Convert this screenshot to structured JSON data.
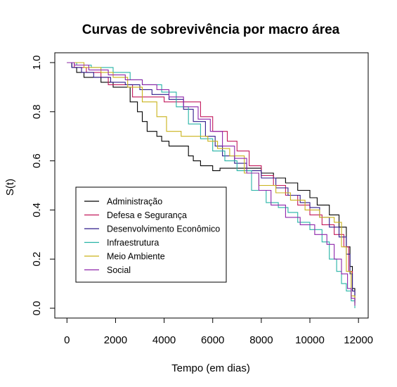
{
  "chart_data": {
    "type": "line",
    "title": "Curvas de sobrevivência por macro área",
    "xlabel": "Tempo (em dias)",
    "ylabel": "S(t)",
    "xlim": [
      -500,
      12400
    ],
    "ylim": [
      -0.04,
      1.04
    ],
    "xticks": [
      0,
      2000,
      4000,
      6000,
      8000,
      10000,
      12000
    ],
    "yticks": [
      0.0,
      0.2,
      0.4,
      0.6,
      0.8,
      1.0
    ],
    "xtick_labels": [
      "0",
      "2000",
      "4000",
      "6000",
      "8000",
      "10000",
      "12000"
    ],
    "ytick_labels": [
      "0.0",
      "0.2",
      "0.4",
      "0.6",
      "0.8",
      "1.0"
    ],
    "step": true,
    "legend_position": "bottom-left",
    "series": [
      {
        "name": "Administração",
        "color": "#000000",
        "x": [
          0,
          200,
          400,
          700,
          1400,
          1900,
          2600,
          2900,
          3100,
          3300,
          3700,
          3900,
          4200,
          5000,
          5200,
          5500,
          6000,
          6300,
          7000,
          7700,
          8000,
          8500,
          9000,
          9500,
          10000,
          10300,
          10800,
          11200,
          11500,
          11650,
          11750,
          11850
        ],
        "y": [
          1.0,
          0.98,
          0.96,
          0.94,
          0.92,
          0.9,
          0.84,
          0.8,
          0.76,
          0.72,
          0.7,
          0.68,
          0.66,
          0.62,
          0.6,
          0.58,
          0.56,
          0.57,
          0.57,
          0.57,
          0.55,
          0.53,
          0.51,
          0.48,
          0.45,
          0.42,
          0.38,
          0.33,
          0.25,
          0.17,
          0.08,
          0.03
        ]
      },
      {
        "name": "Defesa e Segurança",
        "color": "#c2185b",
        "x": [
          0,
          300,
          800,
          1400,
          1700,
          2700,
          3900,
          4000,
          5000,
          5500,
          6000,
          6600,
          7000,
          7500,
          8000,
          8500,
          9000,
          9500,
          10000,
          10500,
          11000,
          11400,
          11600,
          11750,
          11850
        ],
        "y": [
          1.0,
          0.98,
          0.96,
          0.94,
          0.91,
          0.86,
          0.86,
          0.84,
          0.84,
          0.78,
          0.72,
          0.68,
          0.64,
          0.58,
          0.54,
          0.5,
          0.46,
          0.42,
          0.38,
          0.34,
          0.3,
          0.25,
          0.15,
          0.07,
          0.02
        ]
      },
      {
        "name": "Desenvolvimento Econômico",
        "color": "#2e1a8a",
        "x": [
          0,
          200,
          600,
          1100,
          1800,
          2400,
          3000,
          3500,
          4200,
          4800,
          5200,
          5700,
          6100,
          6400,
          6900,
          7400,
          8000,
          8600,
          9100,
          9600,
          10000,
          10400,
          10800,
          11200,
          11500,
          11650,
          11750,
          11850
        ],
        "y": [
          1.0,
          0.98,
          0.96,
          0.94,
          0.92,
          0.91,
          0.89,
          0.87,
          0.85,
          0.81,
          0.76,
          0.7,
          0.66,
          0.62,
          0.59,
          0.56,
          0.53,
          0.49,
          0.46,
          0.43,
          0.41,
          0.37,
          0.33,
          0.29,
          0.22,
          0.14,
          0.07,
          0.02
        ]
      },
      {
        "name": "Infraestrutura",
        "color": "#26b3a6",
        "x": [
          0,
          400,
          1000,
          1900,
          2600,
          3100,
          3900,
          4500,
          5000,
          5500,
          6000,
          6500,
          7000,
          7600,
          8200,
          8700,
          9100,
          9500,
          10000,
          10500,
          10800,
          11100,
          11300,
          11500,
          11700,
          11850
        ],
        "y": [
          1.0,
          0.99,
          0.98,
          0.96,
          0.93,
          0.91,
          0.88,
          0.82,
          0.75,
          0.69,
          0.64,
          0.6,
          0.56,
          0.48,
          0.43,
          0.41,
          0.39,
          0.35,
          0.32,
          0.27,
          0.2,
          0.15,
          0.1,
          0.07,
          0.03,
          0.0
        ]
      },
      {
        "name": "Meio Ambiente",
        "color": "#c9b21a",
        "x": [
          0,
          700,
          1400,
          1900,
          2500,
          3100,
          3700,
          4100,
          4700,
          5300,
          5800,
          6200,
          6700,
          7300,
          7900,
          8600,
          9200,
          9800,
          10400,
          11000,
          11300,
          11500,
          11700,
          11850
        ],
        "y": [
          1.0,
          0.98,
          0.96,
          0.94,
          0.9,
          0.84,
          0.78,
          0.72,
          0.7,
          0.7,
          0.68,
          0.65,
          0.62,
          0.55,
          0.5,
          0.47,
          0.44,
          0.4,
          0.37,
          0.35,
          0.25,
          0.15,
          0.05,
          0.01
        ]
      },
      {
        "name": "Social",
        "color": "#8e24aa",
        "x": [
          0,
          300,
          900,
          1700,
          2400,
          3100,
          3700,
          4200,
          4800,
          5400,
          5900,
          6400,
          6900,
          7400,
          7900,
          8400,
          9000,
          9600,
          10200,
          10700,
          11000,
          11300,
          11550,
          11700,
          11850
        ],
        "y": [
          1.0,
          0.99,
          0.97,
          0.95,
          0.93,
          0.91,
          0.89,
          0.86,
          0.82,
          0.77,
          0.72,
          0.66,
          0.61,
          0.55,
          0.48,
          0.42,
          0.37,
          0.34,
          0.3,
          0.26,
          0.2,
          0.14,
          0.08,
          0.04,
          0.01
        ]
      }
    ]
  }
}
